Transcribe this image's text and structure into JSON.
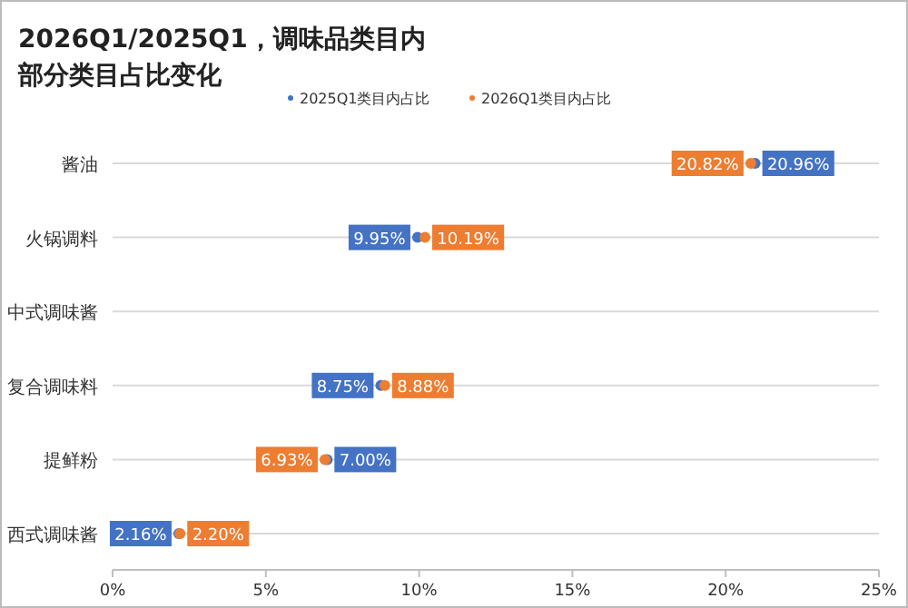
{
  "chart_data": {
    "type": "scatter",
    "orientation": "horizontal",
    "title": "2026Q1/2025Q1，调味品类目内部分类目占比变化",
    "marker": "circle",
    "categories": [
      "酱油",
      "火锅调料",
      "中式调味酱",
      "复合调味料",
      "提鲜粉",
      "西式调味酱"
    ],
    "series": [
      {
        "name": "2025Q1类目内占比",
        "color": "#4472c4",
        "values": [
          20.96,
          9.95,
          null,
          8.75,
          7.0,
          2.16
        ],
        "value_labels": [
          "20.96%",
          "9.95%",
          null,
          "8.75%",
          "7.00%",
          "2.16%"
        ]
      },
      {
        "name": "2026Q1类目内占比",
        "color": "#ed7d31",
        "values": [
          20.82,
          10.19,
          null,
          8.88,
          6.93,
          2.2
        ],
        "value_labels": [
          "20.82%",
          "10.19%",
          null,
          "8.88%",
          "6.93%",
          "2.20%"
        ]
      }
    ],
    "xlim": [
      0,
      25
    ],
    "xticks": [
      {
        "value": 0,
        "label": "0%"
      },
      {
        "value": 5,
        "label": "5%"
      },
      {
        "value": 10,
        "label": "10%"
      },
      {
        "value": 15,
        "label": "15%"
      },
      {
        "value": 20,
        "label": "20%"
      },
      {
        "value": 25,
        "label": "25%"
      }
    ],
    "grid": "y",
    "legend": "top"
  }
}
